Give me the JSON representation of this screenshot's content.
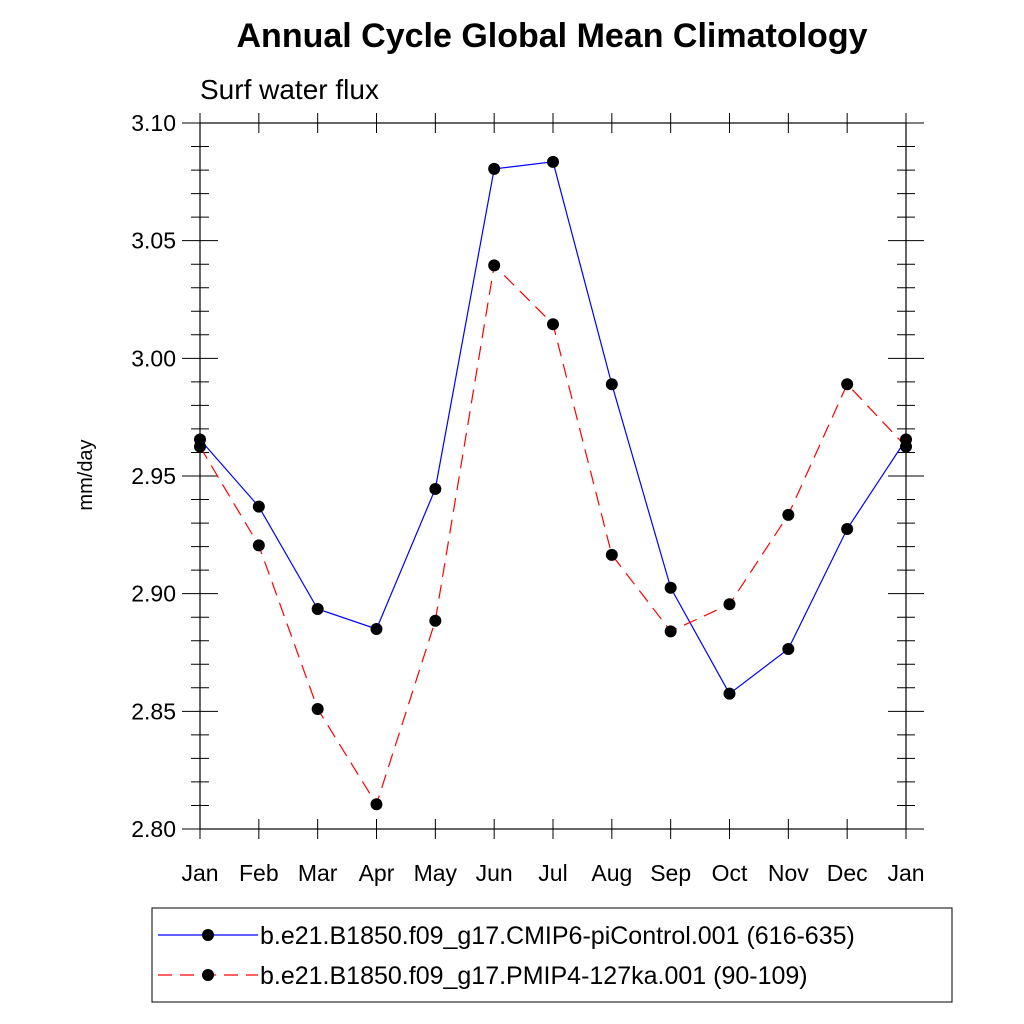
{
  "chart_data": {
    "type": "line",
    "title": "Annual Cycle Global Mean Climatology",
    "subtitle": "Surf water flux",
    "ylabel": "mm/day",
    "xlabel": "",
    "ylim": [
      2.8,
      3.1
    ],
    "yticks": [
      "2.80",
      "2.85",
      "2.90",
      "2.95",
      "3.00",
      "3.05",
      "3.10"
    ],
    "categories": [
      "Jan",
      "Feb",
      "Mar",
      "Apr",
      "May",
      "Jun",
      "Jul",
      "Aug",
      "Sep",
      "Oct",
      "Nov",
      "Dec",
      "Jan"
    ],
    "grid": false,
    "legend_position": "bottom",
    "series": [
      {
        "name": "b.e21.B1850.f09_g17.CMIP6-piControl.001 (616-635)",
        "color": "#0000ff",
        "line_style": "solid",
        "marker": "filled-circle",
        "values": [
          2.9655,
          2.937,
          2.8935,
          2.885,
          2.9445,
          3.0805,
          3.0835,
          2.989,
          2.9025,
          2.8575,
          2.8765,
          2.9275,
          2.9655
        ]
      },
      {
        "name": "b.e21.B1850.f09_g17.PMIP4-127ka.001 (90-109)",
        "color": "#ff0000",
        "line_style": "dashed",
        "marker": "filled-circle",
        "values": [
          2.9625,
          2.9205,
          2.851,
          2.8105,
          2.8885,
          3.0395,
          3.0145,
          2.9165,
          2.884,
          2.8955,
          2.9335,
          2.989,
          2.9625
        ]
      }
    ]
  }
}
